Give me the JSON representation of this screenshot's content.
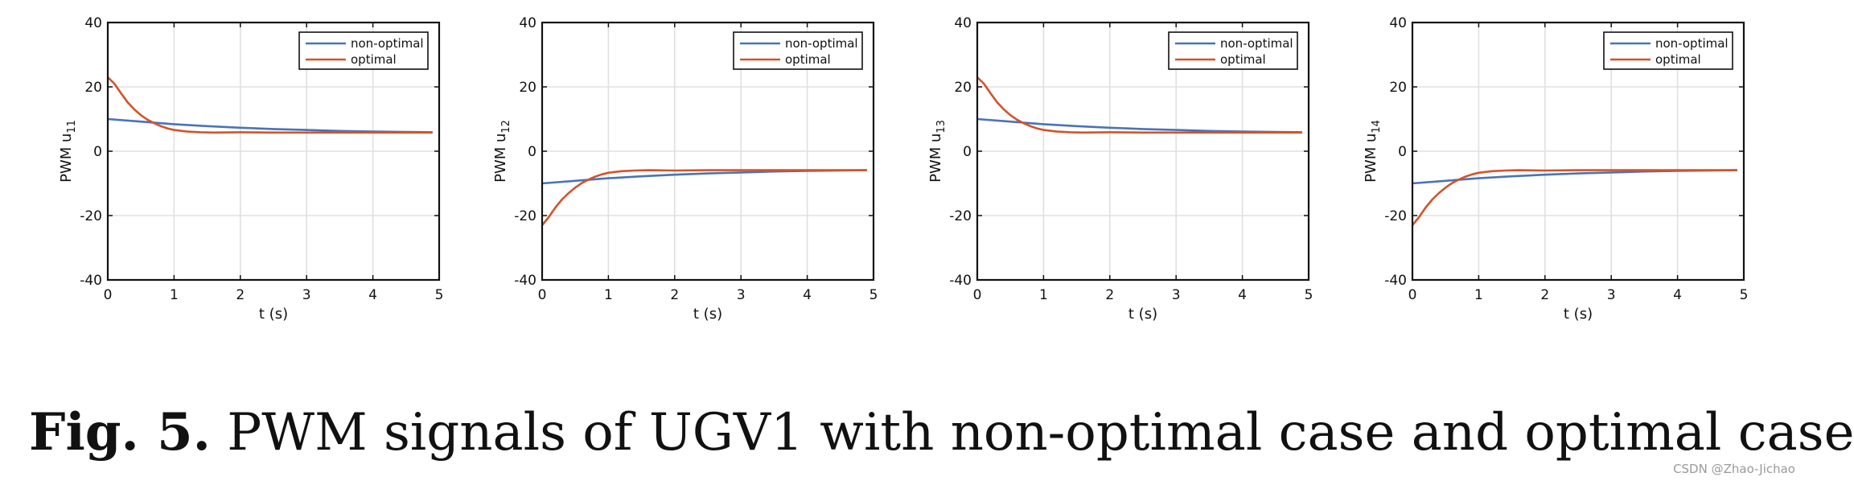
{
  "colors": {
    "non_optimal": "#4a73b8",
    "optimal": "#d2542a",
    "axis": "#111111",
    "grid": "#e0e0e0"
  },
  "caption": {
    "label": "Fig. 5.",
    "text": "PWM signals of UGV1 with non-optimal case and optimal case"
  },
  "watermark": "CSDN @Zhao-Jichao",
  "chart_data": [
    {
      "type": "line",
      "xlabel": "t (s)",
      "ylabel_prefix": "PWM u",
      "ylabel_sub": "11",
      "xlim": [
        0,
        5
      ],
      "ylim": [
        -40,
        40
      ],
      "xticks": [
        "0",
        "1",
        "2",
        "3",
        "4",
        "5"
      ],
      "yticks": [
        "40",
        "20",
        "0",
        "-20",
        "-40"
      ],
      "grid": true,
      "legend_position": "top-right",
      "series": [
        {
          "name": "non-optimal",
          "x": [
            0,
            0.5,
            1,
            1.5,
            2,
            2.5,
            3,
            3.5,
            4,
            4.5,
            4.9
          ],
          "y": [
            10,
            9.2,
            8.4,
            7.8,
            7.3,
            6.9,
            6.6,
            6.3,
            6.1,
            6.0,
            5.9
          ]
        },
        {
          "name": "optimal",
          "x": [
            0,
            0.1,
            0.2,
            0.3,
            0.4,
            0.5,
            0.6,
            0.7,
            0.8,
            0.9,
            1.0,
            1.2,
            1.4,
            1.6,
            2.0,
            2.5,
            3.0,
            4.0,
            4.9
          ],
          "y": [
            23,
            21,
            18,
            15.2,
            13,
            11.2,
            9.8,
            8.7,
            7.8,
            7.1,
            6.6,
            6.1,
            5.9,
            5.8,
            5.9,
            5.8,
            5.8,
            5.8,
            5.8
          ]
        }
      ]
    },
    {
      "type": "line",
      "xlabel": "t (s)",
      "ylabel_prefix": "PWM u",
      "ylabel_sub": "12",
      "xlim": [
        0,
        5
      ],
      "ylim": [
        -40,
        40
      ],
      "xticks": [
        "0",
        "1",
        "2",
        "3",
        "4",
        "5"
      ],
      "yticks": [
        "40",
        "20",
        "0",
        "-20",
        "-40"
      ],
      "grid": true,
      "legend_position": "top-right",
      "series": [
        {
          "name": "non-optimal",
          "x": [
            0,
            0.5,
            1,
            1.5,
            2,
            2.5,
            3,
            3.5,
            4,
            4.5,
            4.9
          ],
          "y": [
            -10,
            -9.2,
            -8.4,
            -7.8,
            -7.3,
            -6.9,
            -6.6,
            -6.3,
            -6.1,
            -6.0,
            -5.9
          ]
        },
        {
          "name": "optimal",
          "x": [
            0,
            0.1,
            0.2,
            0.3,
            0.4,
            0.5,
            0.6,
            0.7,
            0.8,
            0.9,
            1.0,
            1.2,
            1.4,
            1.6,
            2.0,
            2.5,
            3.0,
            4.0,
            4.9
          ],
          "y": [
            -23,
            -20.5,
            -17.5,
            -15,
            -13,
            -11.3,
            -9.9,
            -8.8,
            -7.9,
            -7.2,
            -6.7,
            -6.2,
            -6.0,
            -5.9,
            -6.0,
            -5.9,
            -5.9,
            -5.9,
            -5.9
          ]
        }
      ]
    },
    {
      "type": "line",
      "xlabel": "t (s)",
      "ylabel_prefix": "PWM u",
      "ylabel_sub": "13",
      "xlim": [
        0,
        5
      ],
      "ylim": [
        -40,
        40
      ],
      "xticks": [
        "0",
        "1",
        "2",
        "3",
        "4",
        "5"
      ],
      "yticks": [
        "40",
        "20",
        "0",
        "-20",
        "-40"
      ],
      "grid": true,
      "legend_position": "top-right",
      "series": [
        {
          "name": "non-optimal",
          "x": [
            0,
            0.5,
            1,
            1.5,
            2,
            2.5,
            3,
            3.5,
            4,
            4.5,
            4.9
          ],
          "y": [
            10,
            9.2,
            8.4,
            7.8,
            7.3,
            6.9,
            6.6,
            6.3,
            6.1,
            6.0,
            5.9
          ]
        },
        {
          "name": "optimal",
          "x": [
            0,
            0.1,
            0.2,
            0.3,
            0.4,
            0.5,
            0.6,
            0.7,
            0.8,
            0.9,
            1.0,
            1.2,
            1.4,
            1.6,
            2.0,
            2.5,
            3.0,
            4.0,
            4.9
          ],
          "y": [
            23,
            21,
            18,
            15.2,
            13,
            11.2,
            9.8,
            8.7,
            7.8,
            7.1,
            6.6,
            6.1,
            5.9,
            5.8,
            5.9,
            5.8,
            5.8,
            5.8,
            5.8
          ]
        }
      ]
    },
    {
      "type": "line",
      "xlabel": "t (s)",
      "ylabel_prefix": "PWM u",
      "ylabel_sub": "14",
      "xlim": [
        0,
        5
      ],
      "ylim": [
        -40,
        40
      ],
      "xticks": [
        "0",
        "1",
        "2",
        "3",
        "4",
        "5"
      ],
      "yticks": [
        "40",
        "20",
        "0",
        "-20",
        "-40"
      ],
      "grid": true,
      "legend_position": "top-right",
      "series": [
        {
          "name": "non-optimal",
          "x": [
            0,
            0.5,
            1,
            1.5,
            2,
            2.5,
            3,
            3.5,
            4,
            4.5,
            4.9
          ],
          "y": [
            -10,
            -9.2,
            -8.4,
            -7.8,
            -7.3,
            -6.9,
            -6.6,
            -6.3,
            -6.1,
            -6.0,
            -5.9
          ]
        },
        {
          "name": "optimal",
          "x": [
            0,
            0.1,
            0.2,
            0.3,
            0.4,
            0.5,
            0.6,
            0.7,
            0.8,
            0.9,
            1.0,
            1.2,
            1.4,
            1.6,
            2.0,
            2.5,
            3.0,
            4.0,
            4.9
          ],
          "y": [
            -23,
            -20.5,
            -17.5,
            -15,
            -13,
            -11.3,
            -9.9,
            -8.8,
            -7.9,
            -7.2,
            -6.7,
            -6.2,
            -6.0,
            -5.9,
            -6.0,
            -5.9,
            -5.9,
            -5.9,
            -5.9
          ]
        }
      ]
    }
  ]
}
